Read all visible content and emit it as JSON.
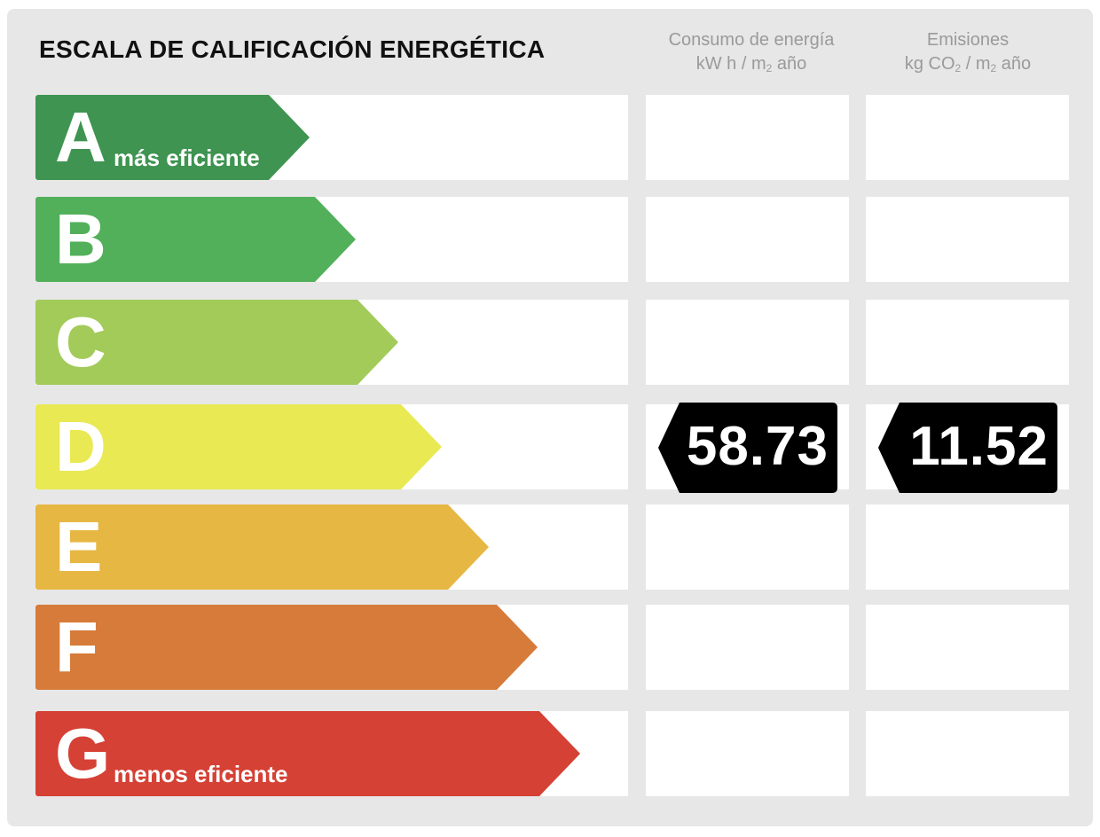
{
  "title": "ESCALA DE CALIFICACIÓN ENERGÉTICA",
  "columns": {
    "consumo": {
      "line1": "Consumo de energía",
      "line2_pre": "kW h / m",
      "line2_sub": "2",
      "line2_post": " año"
    },
    "emisiones": {
      "line1": "Emisiones",
      "line2_pre": "kg CO",
      "line2_sub1": "2",
      "line2_mid": " / m",
      "line2_sub2": "2",
      "line2_post": " año"
    }
  },
  "ratings": [
    {
      "letter": "A",
      "sublabel": "más eficiente",
      "color": "#3e9450"
    },
    {
      "letter": "B",
      "sublabel": "",
      "color": "#52b05b"
    },
    {
      "letter": "C",
      "sublabel": "",
      "color": "#a2cb59"
    },
    {
      "letter": "D",
      "sublabel": "",
      "color": "#e9e954"
    },
    {
      "letter": "E",
      "sublabel": "",
      "color": "#e7b744"
    },
    {
      "letter": "F",
      "sublabel": "",
      "color": "#d67b3a"
    },
    {
      "letter": "G",
      "sublabel": "menos eficiente",
      "color": "#d54135"
    }
  ],
  "current_rating": "D",
  "consumo_value": "58.73",
  "emisiones_value": "11.52"
}
